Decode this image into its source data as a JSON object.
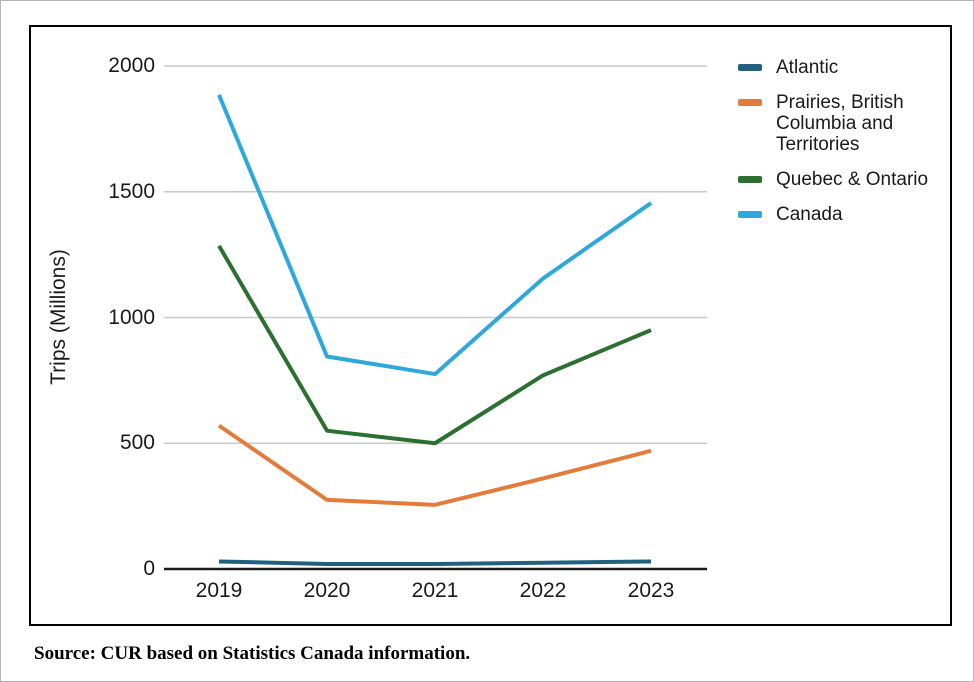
{
  "chart_data": {
    "type": "line",
    "title": "",
    "xlabel": "",
    "ylabel": "Trips (Millions)",
    "categories": [
      "2019",
      "2020",
      "2021",
      "2022",
      "2023"
    ],
    "series": [
      {
        "name": "Atlantic",
        "color": "#226080",
        "values": [
          30,
          20,
          20,
          25,
          30
        ]
      },
      {
        "name": "Prairies, British Columbia and Territories",
        "color": "#E57B3A",
        "values": [
          570,
          275,
          255,
          360,
          470
        ]
      },
      {
        "name": "Quebec & Ontario",
        "color": "#2C7031",
        "values": [
          1285,
          550,
          500,
          770,
          950
        ]
      },
      {
        "name": "Canada",
        "color": "#2EA7DB",
        "values": [
          1885,
          845,
          775,
          1155,
          1455
        ]
      }
    ],
    "ylim": [
      0,
      2000
    ],
    "yticks": [
      0,
      500,
      1000,
      1500,
      2000
    ],
    "grid": true,
    "grid_color": "#c9c9c9",
    "axis_color": "#1a1a1a",
    "legend_position": "right"
  },
  "source_note": "Source: CUR based on Statistics Canada information."
}
